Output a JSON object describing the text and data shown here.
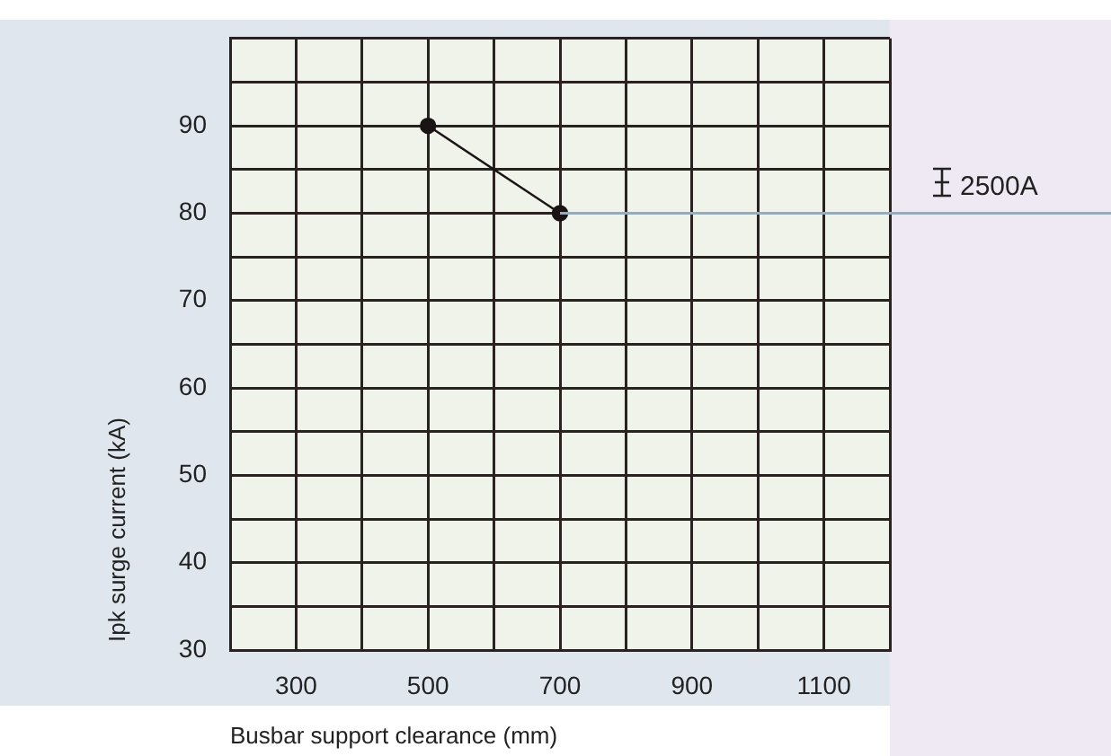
{
  "chart_data": {
    "type": "line",
    "xlabel": "Busbar support clearance (mm)",
    "ylabel": "Ipk surge current (kA)",
    "x": [
      500,
      700
    ],
    "series": [
      {
        "color": "#1a1414",
        "values": [
          90,
          80
        ]
      }
    ],
    "marker": "circle",
    "line_style": "solid",
    "xlim": [
      200,
      1200
    ],
    "xticks": [
      {
        "value": 200,
        "label": null
      },
      300,
      {
        "value": 400,
        "label": null
      },
      500,
      {
        "value": 600,
        "label": null
      },
      700,
      {
        "value": 800,
        "label": null
      },
      900,
      {
        "value": 1000,
        "label": null
      },
      1100,
      {
        "value": 1200,
        "label": null
      }
    ],
    "ylim": [
      30,
      100
    ],
    "yticks": [
      30,
      {
        "value": 35,
        "label": null
      },
      40,
      {
        "value": 45,
        "label": null
      },
      50,
      {
        "value": 55,
        "label": null
      },
      60,
      {
        "value": 65,
        "label": null
      },
      70,
      {
        "value": 75,
        "label": null
      },
      80,
      {
        "value": 85,
        "label": null
      },
      90,
      {
        "value": 95,
        "label": null
      },
      {
        "value": 100,
        "label": null
      }
    ],
    "grid": true,
    "ref_lines": [
      {
        "axis": "y",
        "value": 80,
        "label": "2500A",
        "color": "#9aabb8"
      }
    ]
  }
}
